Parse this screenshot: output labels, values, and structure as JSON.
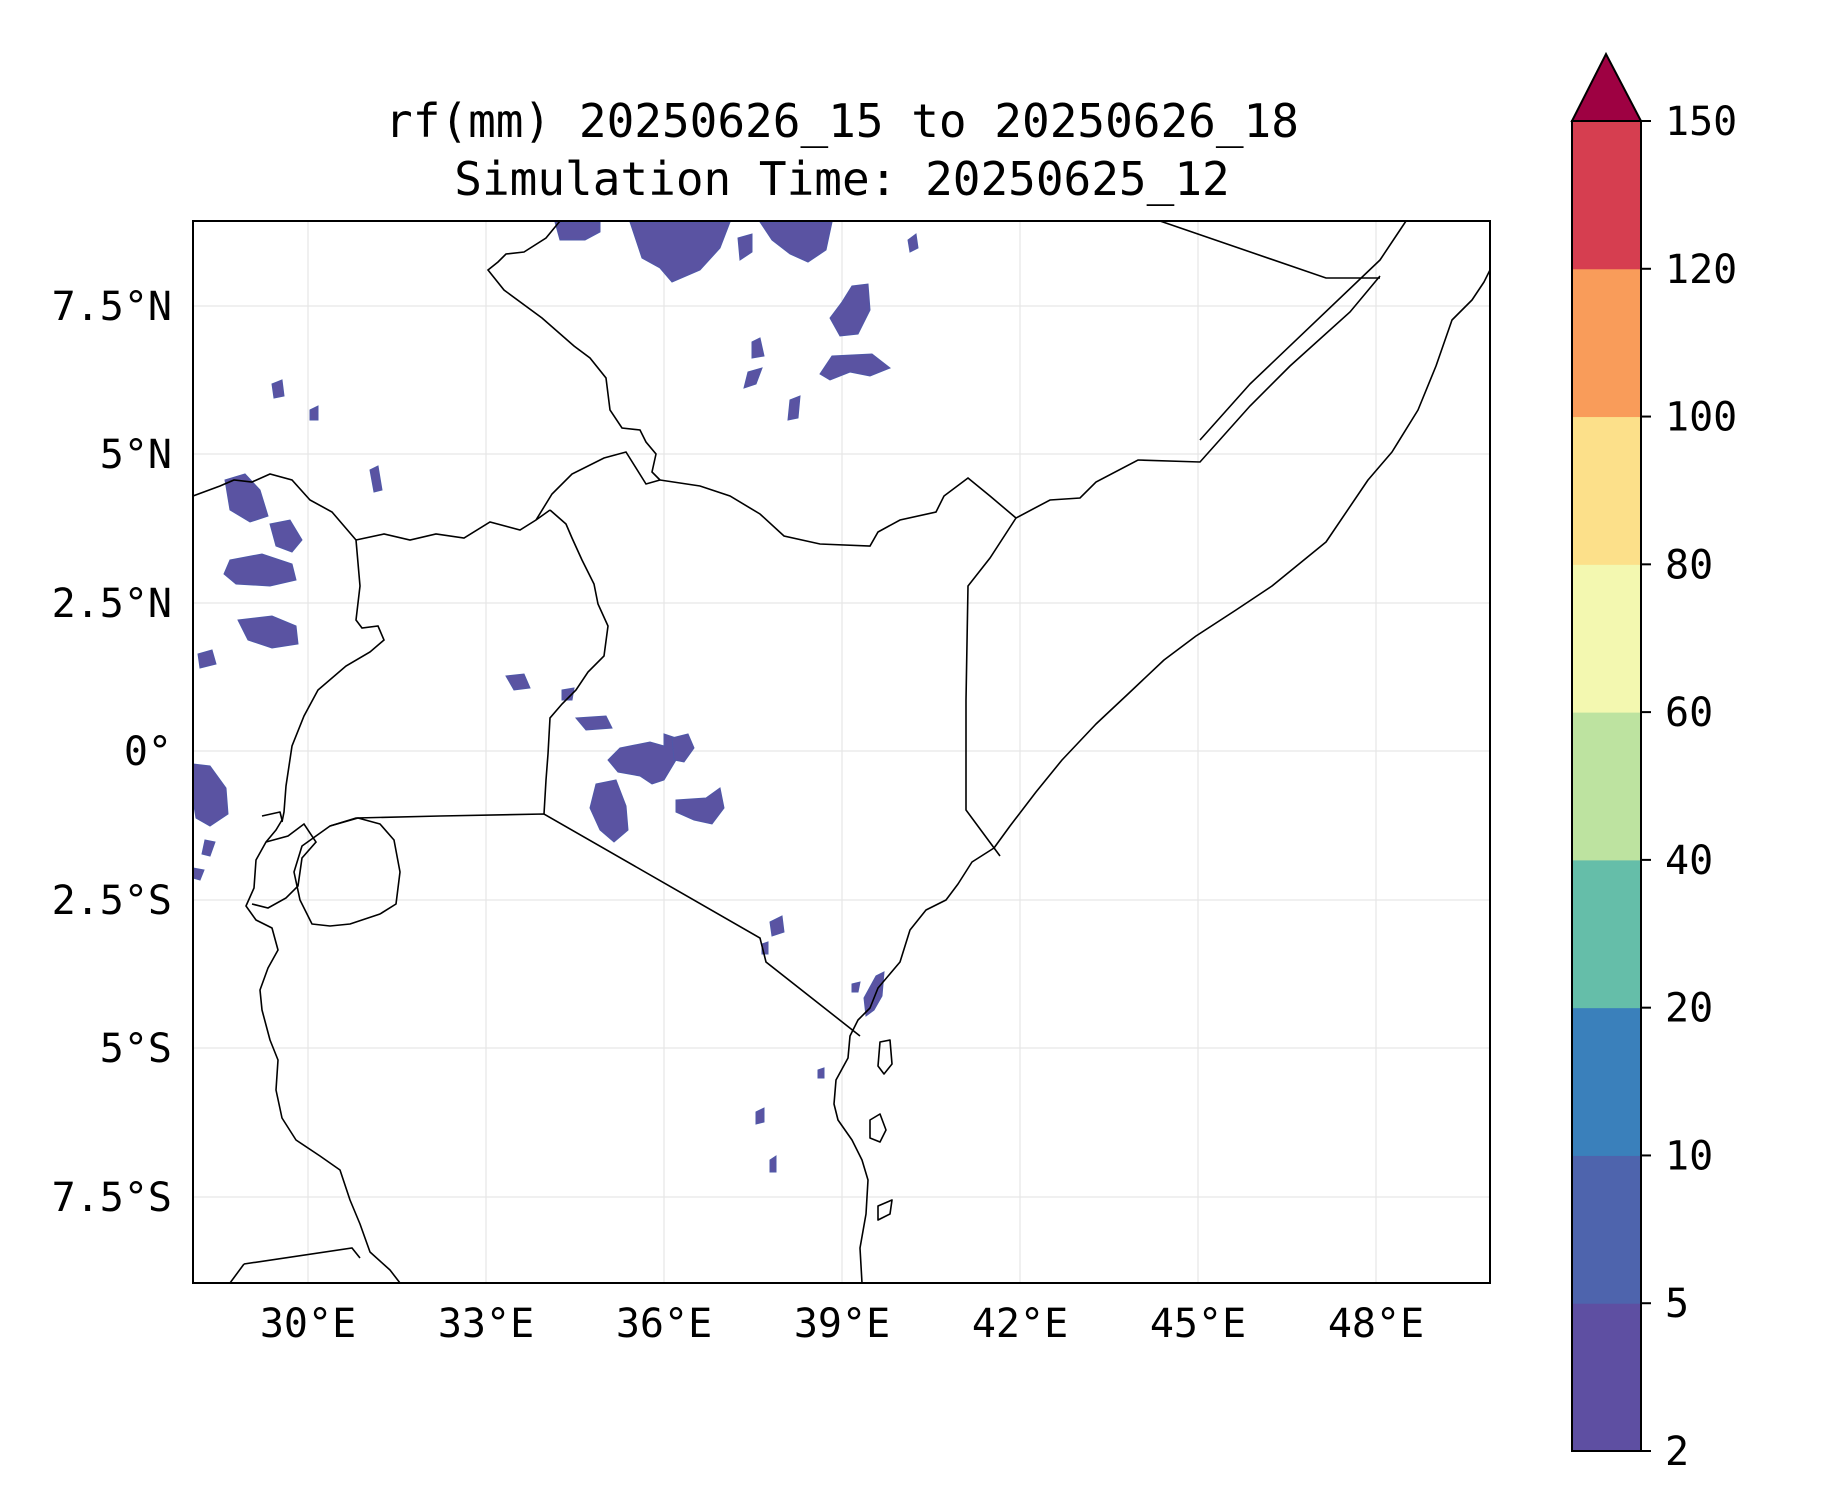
{
  "map": {
    "title_line1": "rf(mm) 20250626_15 to 20250626_18",
    "title_line2": "Simulation Time: 20250625_12",
    "lon_ticks": [
      "30°E",
      "33°E",
      "36°E",
      "39°E",
      "42°E",
      "45°E",
      "48°E"
    ],
    "lat_ticks": [
      "7.5°N",
      "5°N",
      "2.5°N",
      "0°",
      "2.5°S",
      "5°S",
      "7.5°S"
    ],
    "extent": {
      "lon": [
        28.1,
        50.0
      ],
      "lat": [
        -8.9,
        9.0
      ]
    },
    "gridlines": true,
    "colors": {
      "rain_fill": "#5a53a2",
      "coastline": "#000000",
      "gridline": "#e6e6e6"
    }
  },
  "colorbar": {
    "levels": [
      "2",
      "5",
      "10",
      "20",
      "40",
      "60",
      "80",
      "100",
      "120",
      "150"
    ],
    "colors": [
      "#5e4fa2",
      "#4e64ad",
      "#3a80bb",
      "#65bea9",
      "#bde3a0",
      "#f3f8b0",
      "#fce08a",
      "#f99c5a",
      "#d63e50"
    ],
    "extend_color": "#9e0142",
    "extend": "max"
  }
}
